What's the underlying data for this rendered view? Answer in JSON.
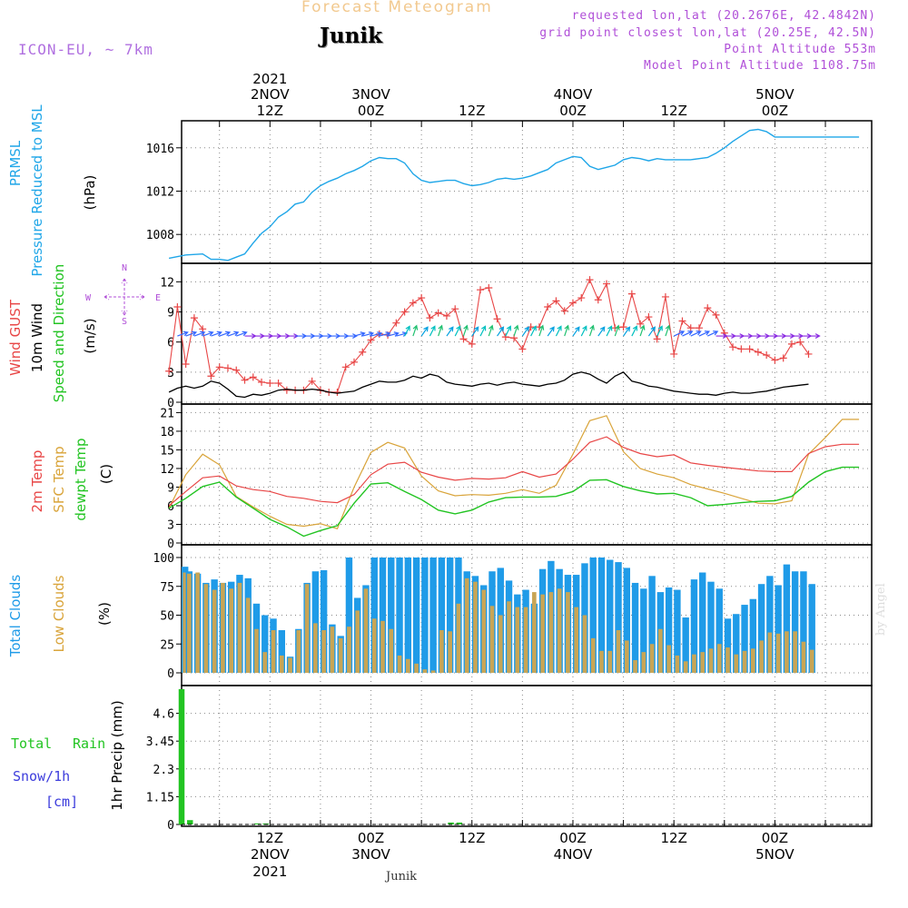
{
  "header": {
    "title": "Forecast Meteogram",
    "location": "Junik",
    "model": "ICON-EU, ~ 7km",
    "requested": "requested lon,lat (20.2676E, 42.4842N)",
    "gridpoint": "grid point closest lon,lat (20.25E, 42.5N)",
    "altitude": "Point Altitude 553m",
    "model_altitude": "Model Point Altitude 1108.75m",
    "credit": "by Angel",
    "footer": "Junik"
  },
  "colors": {
    "pressure": "#1fa6e8",
    "gust": "#e84646",
    "wind": "#000000",
    "temp2m": "#e84646",
    "sfc": "#d9a43a",
    "dewpt": "#22c422",
    "total_clouds": "#1f9be8",
    "low_clouds": "#c8a555",
    "rain": "#22c422",
    "snow": "#3c3cdc",
    "grid": "#888888",
    "label_purple": "#b04fd8"
  },
  "time_axis": {
    "top_labels": [
      {
        "t": 12,
        "line1": "2021",
        "line2": "2NOV",
        "line3": "12Z"
      },
      {
        "t": 24,
        "line2": "3NOV",
        "line3": "00Z"
      },
      {
        "t": 36,
        "line3": "12Z"
      },
      {
        "t": 48,
        "line2": "4NOV",
        "line3": "00Z"
      },
      {
        "t": 60,
        "line3": "12Z"
      },
      {
        "t": 72,
        "line2": "5NOV",
        "line3": "00Z"
      }
    ],
    "bottom_labels": [
      {
        "t": 12,
        "line1": "12Z",
        "line2": "2NOV",
        "line3": "2021"
      },
      {
        "t": 24,
        "line1": "00Z",
        "line2": "3NOV"
      },
      {
        "t": 36,
        "line1": "12Z"
      },
      {
        "t": 48,
        "line1": "00Z",
        "line2": "4NOV"
      },
      {
        "t": 60,
        "line1": "12Z"
      },
      {
        "t": 72,
        "line1": "00Z",
        "line2": "5NOV"
      }
    ]
  },
  "panels": {
    "pressure": {
      "labels": [
        "PRMSL",
        "Pressure Reduced to MSL",
        "(hPa)"
      ],
      "yticks": [
        "1008",
        "1012",
        "1016"
      ]
    },
    "wind": {
      "labels": [
        "Wind GUST",
        "10m Wind",
        "Speed and Direction",
        "(m/s)"
      ],
      "yticks": [
        "0",
        "3",
        "6",
        "9",
        "12"
      ],
      "compass": {
        "n": "N",
        "s": "S",
        "w": "W",
        "e": "E"
      }
    },
    "temp": {
      "labels": [
        "2m Temp",
        "SFC Temp",
        "dewpt Temp",
        "(C)"
      ],
      "yticks": [
        "0",
        "3",
        "6",
        "9",
        "12",
        "15",
        "18",
        "21"
      ]
    },
    "clouds": {
      "labels": [
        "Total Clouds",
        "Low Clouds",
        "(%)"
      ],
      "yticks": [
        "0",
        "25",
        "50",
        "75",
        "100"
      ]
    },
    "precip": {
      "labels": [
        "Total",
        "Rain",
        "Snow/1h",
        "[cm]",
        "1hr Precip (mm)"
      ],
      "yticks": [
        "0",
        "1.15",
        "2.3",
        "3.45",
        "4.6"
      ]
    }
  },
  "chart_data": [
    {
      "type": "line",
      "ylabel": "(hPa)",
      "ylim": [
        1005.5,
        1018.5
      ],
      "x_hours": [
        0,
        2,
        4,
        5,
        6,
        7,
        8,
        9,
        10,
        11,
        12,
        13,
        14,
        15,
        16,
        17,
        18,
        19,
        20,
        21,
        22,
        23,
        24,
        25,
        26,
        27,
        28,
        29,
        30,
        31,
        32,
        33,
        34,
        35,
        36,
        37,
        38,
        39,
        40,
        41,
        42,
        43,
        44,
        45,
        46,
        47,
        48,
        49,
        50,
        51,
        52,
        53,
        54,
        55,
        56,
        57,
        58,
        59,
        60,
        61,
        62,
        63,
        64,
        65,
        66,
        67,
        68,
        69,
        70,
        71,
        72,
        73,
        74,
        75,
        76,
        77,
        78,
        79,
        80,
        81,
        82
      ],
      "series": [
        {
          "name": "PRMSL",
          "values": [
            1005.8,
            1006.1,
            1006.2,
            1005.7,
            1005.7,
            1005.6,
            1005.9,
            1006.2,
            1007.2,
            1008.1,
            1008.7,
            1009.6,
            1010.1,
            1010.8,
            1011.0,
            1011.9,
            1012.5,
            1012.9,
            1013.2,
            1013.6,
            1013.9,
            1014.3,
            1014.8,
            1015.1,
            1015.0,
            1015.0,
            1014.6,
            1013.6,
            1013.0,
            1012.8,
            1012.9,
            1013.0,
            1013.0,
            1012.7,
            1012.5,
            1012.6,
            1012.8,
            1013.1,
            1013.2,
            1013.1,
            1013.2,
            1013.4,
            1013.7,
            1014.0,
            1014.6,
            1014.9,
            1015.2,
            1015.1,
            1014.3,
            1014.0,
            1014.2,
            1014.4,
            1014.9,
            1015.1,
            1015.0,
            1014.8,
            1015.0,
            1014.9,
            1014.9,
            1014.9,
            1014.9,
            1015.0,
            1015.1,
            1015.5,
            1016.0,
            1016.6,
            1017.1,
            1017.6,
            1017.7,
            1017.5,
            1017.0,
            1017.0,
            1017.0,
            1017.0,
            1017.0,
            1017.0,
            1017.0,
            1017.0,
            1017.0,
            1017.0,
            1017.0
          ]
        }
      ]
    },
    {
      "type": "line",
      "ylabel": "(m/s)",
      "ylim": [
        0,
        13.3
      ],
      "x_hours": [
        0,
        1,
        2,
        3,
        4,
        5,
        6,
        7,
        8,
        9,
        10,
        11,
        12,
        13,
        14,
        15,
        16,
        17,
        18,
        19,
        20,
        21,
        22,
        23,
        24,
        25,
        26,
        27,
        28,
        29,
        30,
        31,
        32,
        33,
        34,
        35,
        36,
        37,
        38,
        39,
        40,
        41,
        42,
        43,
        44,
        45,
        46,
        47,
        48,
        49,
        50,
        51,
        52,
        53,
        54,
        55,
        56,
        57,
        58,
        59,
        60,
        61,
        62,
        63,
        64,
        65,
        66,
        67,
        68,
        69,
        70,
        71,
        72,
        73,
        74,
        75,
        76
      ],
      "series": [
        {
          "name": "Wind GUST",
          "values": [
            3.1,
            9.5,
            3.8,
            8.4,
            7.3,
            2.6,
            3.5,
            3.4,
            3.2,
            2.2,
            2.5,
            2.0,
            1.9,
            1.9,
            1.2,
            1.2,
            1.2,
            2.1,
            1.2,
            1.0,
            1.0,
            3.5,
            4.0,
            5.0,
            6.2,
            6.8,
            6.7,
            7.9,
            9.0,
            9.9,
            10.4,
            8.4,
            8.9,
            8.6,
            9.3,
            6.3,
            5.8,
            11.2,
            11.4,
            8.3,
            6.5,
            6.4,
            5.3,
            7.5,
            7.5,
            9.5,
            10.1,
            9.1,
            9.9,
            10.4,
            12.2,
            10.2,
            11.8,
            7.4,
            7.5,
            10.8,
            7.8,
            8.5,
            6.3,
            10.5,
            4.8,
            8.1,
            7.4,
            7.4,
            9.4,
            8.7,
            6.9,
            5.5,
            5.3,
            5.3,
            5.0,
            4.7,
            4.2,
            4.4,
            5.8,
            6.0,
            4.8
          ]
        },
        {
          "name": "10m Wind",
          "values": [
            1.0,
            1.4,
            1.6,
            1.4,
            1.6,
            2.1,
            1.9,
            1.3,
            0.6,
            0.5,
            0.8,
            0.7,
            0.9,
            1.2,
            1.3,
            1.2,
            1.2,
            1.3,
            1.2,
            1.0,
            0.9,
            1.0,
            1.1,
            1.5,
            1.8,
            2.1,
            2.0,
            2.0,
            2.2,
            2.6,
            2.4,
            2.8,
            2.6,
            2.0,
            1.8,
            1.7,
            1.6,
            1.8,
            1.9,
            1.7,
            1.9,
            2.0,
            1.8,
            1.7,
            1.6,
            1.8,
            1.9,
            2.2,
            2.8,
            3.0,
            2.8,
            2.3,
            1.9,
            2.6,
            3.0,
            2.1,
            1.9,
            1.6,
            1.5,
            1.3,
            1.1,
            1.0,
            0.9,
            0.8,
            0.8,
            0.7,
            0.9,
            1.0,
            0.9,
            0.9,
            1.0,
            1.1,
            1.3,
            1.5,
            1.6,
            1.7,
            1.8
          ]
        }
      ]
    },
    {
      "type": "line",
      "ylabel": "(C)",
      "ylim": [
        0,
        21.5
      ],
      "x_hours": [
        0,
        2,
        4,
        6,
        8,
        10,
        12,
        14,
        16,
        18,
        20,
        22,
        24,
        26,
        28,
        30,
        32,
        34,
        36,
        38,
        40,
        42,
        44,
        46,
        48,
        50,
        52,
        54,
        56,
        58,
        60,
        62,
        64,
        66,
        68,
        70,
        72,
        74,
        76,
        78,
        80,
        82
      ],
      "series": [
        {
          "name": "2m Temp",
          "values": [
            6.0,
            8.3,
            10.5,
            10.8,
            9.2,
            8.6,
            8.3,
            7.5,
            7.2,
            6.7,
            6.5,
            7.8,
            11.0,
            12.7,
            13.0,
            11.4,
            10.6,
            10.1,
            10.4,
            10.3,
            10.5,
            11.5,
            10.6,
            11.1,
            13.5,
            16.2,
            17.1,
            15.4,
            14.4,
            13.9,
            14.2,
            12.9,
            12.5,
            12.2,
            11.9,
            11.6,
            11.5,
            11.5,
            14.4,
            15.5,
            15.9,
            15.9
          ]
        },
        {
          "name": "SFC Temp",
          "values": [
            5.6,
            11.0,
            14.3,
            12.6,
            7.5,
            5.8,
            4.3,
            3.0,
            2.7,
            3.1,
            2.3,
            9.0,
            14.6,
            16.2,
            15.3,
            10.8,
            8.4,
            7.6,
            7.8,
            7.7,
            8.0,
            8.6,
            8.0,
            9.3,
            14.3,
            19.7,
            20.5,
            14.7,
            12.0,
            11.1,
            10.5,
            9.4,
            8.7,
            8.0,
            7.2,
            6.4,
            6.3,
            6.8,
            14.3,
            17.0,
            19.9,
            19.9
          ]
        },
        {
          "name": "dewpt Temp",
          "values": [
            5.6,
            7.2,
            9.1,
            9.8,
            7.4,
            5.6,
            3.8,
            2.6,
            1.1,
            2.0,
            2.8,
            6.4,
            9.5,
            9.7,
            8.3,
            7.0,
            5.3,
            4.7,
            5.3,
            6.6,
            7.3,
            7.4,
            7.4,
            7.5,
            8.3,
            10.1,
            10.2,
            9.1,
            8.4,
            7.9,
            8.0,
            7.3,
            6.0,
            6.2,
            6.5,
            6.7,
            6.8,
            7.5,
            9.8,
            11.5,
            12.2,
            12.2
          ]
        }
      ]
    },
    {
      "type": "bar",
      "ylabel": "(%)",
      "ylim": [
        0,
        100
      ],
      "x_hours": [
        0,
        1,
        2,
        3,
        4,
        5,
        6,
        7,
        8,
        9,
        10,
        11,
        12,
        13,
        14,
        15,
        16,
        17,
        18,
        19,
        20,
        21,
        22,
        23,
        24,
        25,
        26,
        27,
        28,
        29,
        30,
        31,
        32,
        33,
        34,
        35,
        36,
        37,
        38,
        39,
        40,
        41,
        42,
        43,
        44,
        45,
        46,
        47,
        48,
        49,
        50,
        51,
        52,
        53,
        54,
        55,
        56,
        57,
        58,
        59,
        60,
        61,
        62,
        63,
        64,
        65,
        66,
        67,
        68,
        69,
        70,
        71,
        72,
        73,
        74,
        75,
        76
      ],
      "series": [
        {
          "name": "Total Clouds",
          "values": [
            100,
            92,
            88,
            86,
            78,
            81,
            78,
            79,
            85,
            82,
            60,
            50,
            47,
            37,
            14,
            38,
            78,
            88,
            89,
            42,
            32,
            100,
            65,
            76,
            100,
            100,
            100,
            100,
            100,
            100,
            100,
            100,
            100,
            100,
            100,
            88,
            84,
            76,
            88,
            91,
            80,
            68,
            72,
            60,
            90,
            97,
            90,
            85,
            85,
            95,
            100,
            100,
            98,
            96,
            91,
            78,
            73,
            84,
            70,
            74,
            72,
            48,
            81,
            87,
            79,
            73,
            47,
            51,
            59,
            64,
            77,
            84,
            76,
            94,
            88,
            88,
            77
          ]
        },
        {
          "name": "Low Clouds",
          "values": [
            86,
            87,
            86,
            87,
            77,
            72,
            78,
            73,
            78,
            65,
            38,
            18,
            37,
            15,
            13,
            37,
            77,
            43,
            37,
            40,
            30,
            40,
            54,
            73,
            47,
            45,
            38,
            15,
            12,
            8,
            3,
            2,
            37,
            36,
            60,
            82,
            79,
            72,
            58,
            50,
            62,
            57,
            57,
            70,
            68,
            70,
            73,
            70,
            57,
            50,
            30,
            19,
            19,
            37,
            28,
            11,
            18,
            25,
            38,
            24,
            15,
            10,
            16,
            18,
            21,
            25,
            22,
            16,
            19,
            21,
            28,
            35,
            34,
            36,
            36,
            27,
            20
          ]
        }
      ]
    },
    {
      "type": "bar",
      "ylabel": "1hr Precip (mm)",
      "ylim": [
        0,
        5.75
      ],
      "x_hours": [
        1,
        2,
        10,
        11,
        33,
        34
      ],
      "series": [
        {
          "name": "Total Rain",
          "values": [
            5.6,
            0.18,
            0.04,
            0.04,
            0.08,
            0.08
          ]
        }
      ]
    }
  ]
}
